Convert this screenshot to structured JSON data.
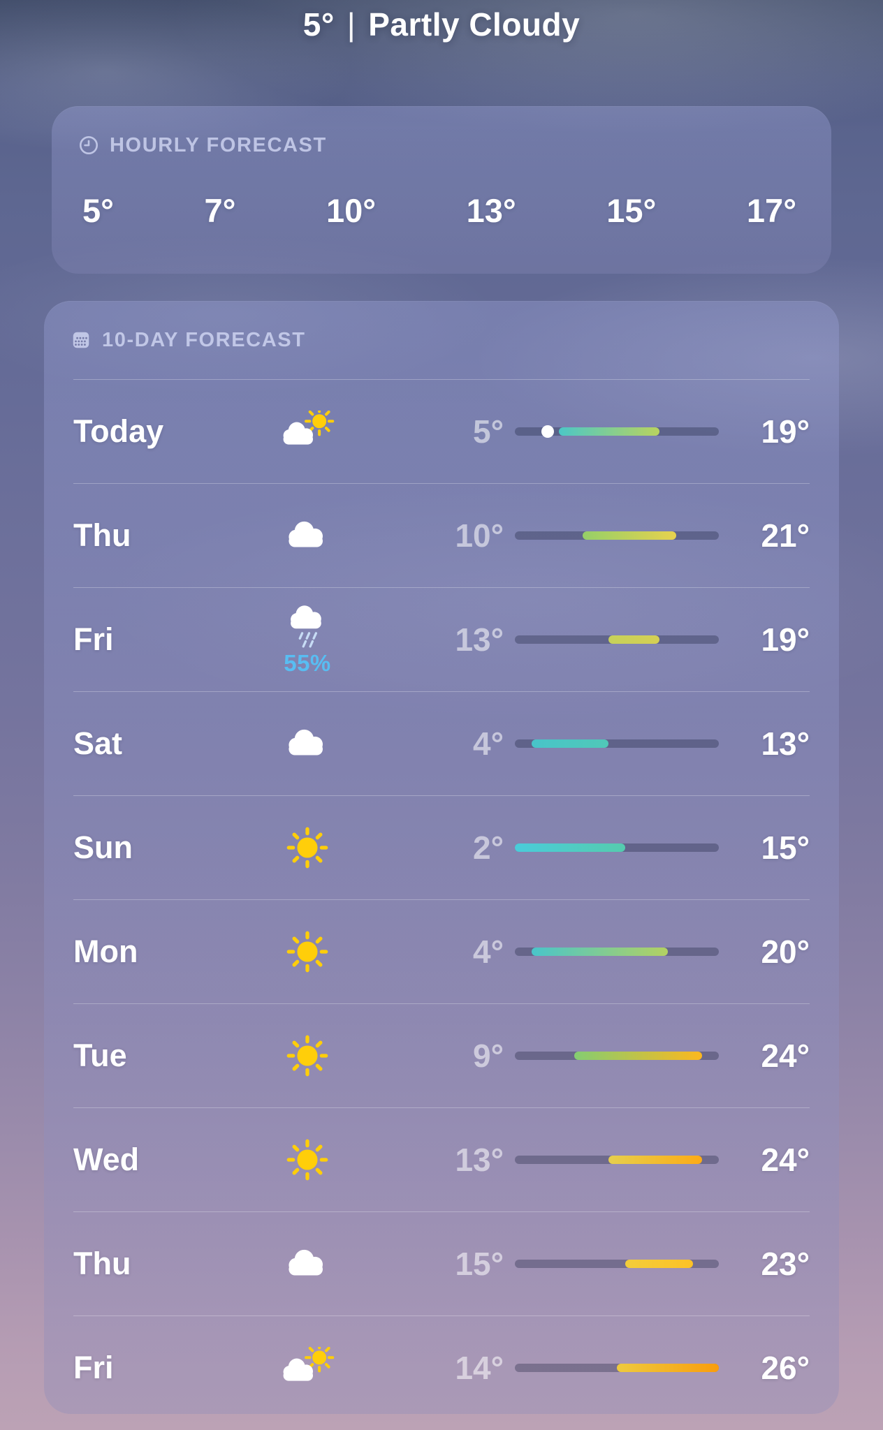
{
  "header": {
    "temperature": "5°",
    "separator": "|",
    "condition": "Partly Cloudy"
  },
  "hourly": {
    "icon": "clock-icon",
    "title": "HOURLY FORECAST",
    "temps": [
      "5°",
      "7°",
      "10°",
      "13°",
      "15°",
      "17°"
    ]
  },
  "ten_day": {
    "icon": "calendar-icon",
    "title": "10-DAY FORECAST",
    "range": {
      "min": 2,
      "max": 26
    },
    "rows": [
      {
        "day": "Today",
        "icon": "cloud-sun",
        "low": 5,
        "high": 19,
        "low_label": "5°",
        "high_label": "19°",
        "current_dot": true,
        "bar": {
          "from": "#4cc7c6",
          "to": "#b9d35f"
        }
      },
      {
        "day": "Thu",
        "icon": "cloud",
        "low": 10,
        "high": 21,
        "low_label": "10°",
        "high_label": "21°",
        "current_dot": false,
        "bar": {
          "from": "#95cf68",
          "to": "#e7d24e"
        }
      },
      {
        "day": "Fri",
        "icon": "cloud-rain",
        "precip": "55%",
        "low": 13,
        "high": 19,
        "low_label": "13°",
        "high_label": "19°",
        "current_dot": false,
        "bar": {
          "from": "#c6d15a",
          "to": "#d5d054"
        }
      },
      {
        "day": "Sat",
        "icon": "cloud",
        "low": 4,
        "high": 13,
        "low_label": "4°",
        "high_label": "13°",
        "current_dot": false,
        "bar": {
          "from": "#48c4c9",
          "to": "#50c8b8"
        }
      },
      {
        "day": "Sun",
        "icon": "sun",
        "low": 2,
        "high": 15,
        "low_label": "2°",
        "high_label": "15°",
        "current_dot": false,
        "bar": {
          "from": "#4accda",
          "to": "#55cbae"
        }
      },
      {
        "day": "Mon",
        "icon": "sun",
        "low": 4,
        "high": 20,
        "low_label": "4°",
        "high_label": "20°",
        "current_dot": false,
        "bar": {
          "from": "#49c5ca",
          "to": "#b3d162"
        }
      },
      {
        "day": "Tue",
        "icon": "sun",
        "low": 9,
        "high": 24,
        "low_label": "9°",
        "high_label": "24°",
        "current_dot": false,
        "bar": {
          "from": "#84cd72",
          "to": "#fcb81f"
        }
      },
      {
        "day": "Wed",
        "icon": "sun",
        "low": 13,
        "high": 24,
        "low_label": "13°",
        "high_label": "24°",
        "current_dot": false,
        "bar": {
          "from": "#e6cf4d",
          "to": "#fcab16"
        }
      },
      {
        "day": "Thu",
        "icon": "cloud",
        "low": 15,
        "high": 23,
        "low_label": "15°",
        "high_label": "23°",
        "current_dot": false,
        "bar": {
          "from": "#f2cd3b",
          "to": "#fdc226"
        }
      },
      {
        "day": "Fri",
        "icon": "cloud-sun",
        "low": 14,
        "high": 26,
        "low_label": "14°",
        "high_label": "26°",
        "current_dot": false,
        "bar": {
          "from": "#eeca3e",
          "to": "#f99d0d"
        }
      }
    ]
  },
  "colors": {
    "high_temp": "#ffffff",
    "low_temp": "rgba(255,255,255,0.55)",
    "section_label": "rgba(216,222,248,0.75)",
    "precip_accent": "#58bdf2",
    "sun_yellow": "#ffce0a",
    "cloud_white": "#ffffff",
    "rain_streak": "#c7dcf5",
    "bar_track": "rgba(25,30,60,0.32)"
  }
}
